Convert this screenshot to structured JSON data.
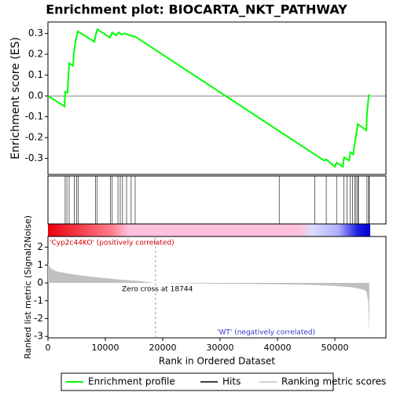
{
  "chart_data": [
    {
      "type": "line",
      "title": "Enrichment plot: BIOCARTA_NKT_PATHWAY",
      "ylabel": "Enrichment score (ES)",
      "xlim": [
        0,
        58900
      ],
      "ylim": [
        -0.377,
        0.355
      ],
      "yticks": [
        0.3,
        0.2,
        0.1,
        {
          "value": 0,
          "label": "0.0"
        },
        -0.1,
        -0.2,
        -0.3
      ],
      "series": [
        {
          "name": "Enrichment profile",
          "color": "#00ff00",
          "x": [
            0,
            2900,
            3000,
            3400,
            3560,
            3700,
            4400,
            4500,
            4800,
            5200,
            8100,
            8350,
            8600,
            10800,
            11200,
            11900,
            12300,
            12900,
            13300,
            14400,
            15200,
            16300,
            48100,
            48500,
            50000,
            50300,
            51400,
            51600,
            52500,
            52700,
            53200,
            53400,
            53700,
            54000,
            55500,
            55600,
            55900,
            56000
          ],
          "values": [
            0,
            -0.05,
            0.02,
            0.015,
            0.095,
            0.157,
            0.145,
            0.205,
            0.26,
            0.31,
            0.26,
            0.295,
            0.32,
            0.28,
            0.305,
            0.29,
            0.305,
            0.295,
            0.3,
            0.29,
            0.285,
            0.265,
            -0.31,
            -0.305,
            -0.34,
            -0.32,
            -0.34,
            -0.295,
            -0.31,
            -0.27,
            -0.28,
            -0.24,
            -0.19,
            -0.135,
            -0.165,
            -0.085,
            0.0,
            0.007
          ]
        }
      ]
    },
    {
      "type": "hits",
      "xlim": [
        0,
        58900
      ],
      "series": [
        {
          "name": "Hits",
          "color": "#000000",
          "x": [
            3000,
            3300,
            3700,
            4600,
            5000,
            5300,
            8300,
            8600,
            10900,
            11200,
            12200,
            12600,
            13000,
            13700,
            14500,
            15200,
            40300,
            46500,
            48500,
            50300,
            51600,
            52100,
            52700,
            53100,
            53500,
            53700,
            54000,
            54100,
            55600,
            55900,
            56000
          ]
        }
      ]
    },
    {
      "type": "area",
      "xlabel": "Rank in Ordered Dataset",
      "ylabel": "Ranked list metric (Signal2Noise)",
      "xlim": [
        0,
        58900
      ],
      "ylim": [
        -3.08,
        2.6
      ],
      "xticks": [
        0,
        10000,
        20000,
        30000,
        40000,
        50000
      ],
      "yticks": [
        2,
        1,
        0,
        -1,
        -2,
        -3
      ],
      "zero_cross": 18744,
      "annotations": [
        "'Cyp2c44KO' (positively correlated)",
        "Zero cross at 18744",
        "'WT' (negatively correlated)"
      ],
      "series": [
        {
          "name": "Ranking metric scores",
          "color": "#c0c0c0",
          "x": [
            0,
            500,
            1500,
            3000,
            5000,
            8000,
            12000,
            16000,
            18744,
            25000,
            35000,
            45000,
            50000,
            53000,
            55000,
            55500,
            55800,
            56000
          ],
          "values": [
            1.1,
            0.8,
            0.65,
            0.55,
            0.45,
            0.33,
            0.2,
            0.1,
            0,
            -0.03,
            -0.06,
            -0.1,
            -0.17,
            -0.25,
            -0.38,
            -0.5,
            -1.0,
            -2.85
          ]
        }
      ]
    }
  ]
}
